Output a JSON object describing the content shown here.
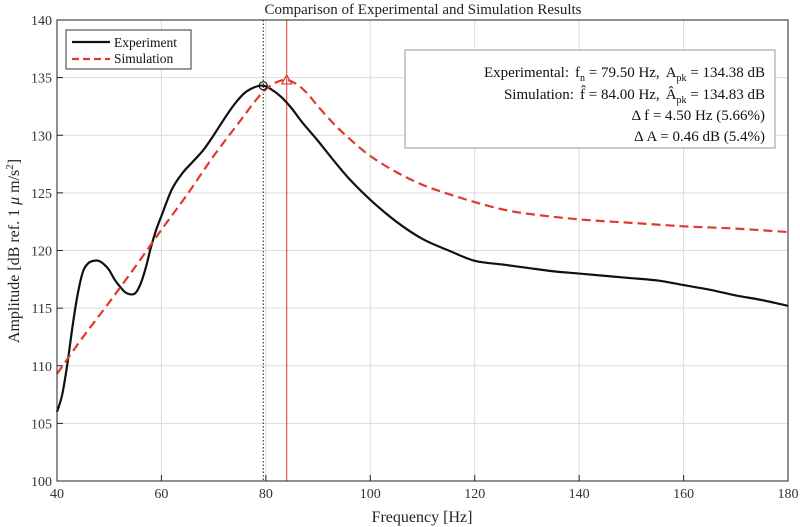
{
  "chart_data": {
    "type": "line",
    "title": "Comparison of Experimental and Simulation Results",
    "xlabel": "Frequency [Hz]",
    "ylabel_parts": {
      "pre": "Amplitude [dB ref. 1 ",
      "mu": "μ",
      "unit": " m/s",
      "sup": "2",
      "post": "]"
    },
    "xlim": [
      40,
      180
    ],
    "ylim": [
      100,
      140
    ],
    "xticks": [
      "40",
      "60",
      "80",
      "100",
      "120",
      "140",
      "160",
      "180"
    ],
    "yticks": [
      "100",
      "105",
      "110",
      "115",
      "120",
      "125",
      "130",
      "135",
      "140"
    ],
    "grid": true,
    "legend_position": "top-left",
    "series": [
      {
        "name": "Experiment",
        "color": "#111111",
        "style": "solid",
        "x": [
          40,
          41,
          42,
          43,
          44,
          45,
          46,
          47,
          48,
          49,
          50,
          51,
          52,
          53,
          54,
          55,
          56,
          57,
          58,
          59,
          60,
          62,
          64,
          66,
          68,
          70,
          72,
          74,
          76,
          78,
          79.5,
          81,
          83,
          85,
          87,
          90,
          93,
          96,
          100,
          105,
          110,
          115,
          120,
          125,
          130,
          135,
          140,
          145,
          150,
          155,
          160,
          165,
          170,
          175,
          180
        ],
        "y": [
          106.0,
          107.5,
          110.2,
          113.5,
          116.3,
          118.2,
          118.9,
          119.1,
          119.1,
          118.8,
          118.3,
          117.5,
          116.9,
          116.4,
          116.2,
          116.3,
          117.1,
          118.5,
          120.3,
          121.8,
          123.0,
          125.3,
          126.7,
          127.7,
          128.7,
          130.0,
          131.4,
          132.7,
          133.7,
          134.2,
          134.3,
          134.0,
          133.3,
          132.3,
          131.1,
          129.5,
          127.8,
          126.2,
          124.4,
          122.5,
          121.0,
          120.0,
          119.1,
          118.8,
          118.5,
          118.2,
          118.0,
          117.8,
          117.6,
          117.4,
          117.0,
          116.6,
          116.1,
          115.7,
          115.2
        ]
      },
      {
        "name": "Simulation",
        "color": "#e03a2e",
        "style": "dashed",
        "x": [
          40,
          45,
          50,
          55,
          60,
          65,
          70,
          75,
          78,
          80,
          82,
          84,
          86,
          88,
          90,
          93,
          96,
          100,
          105,
          110,
          115,
          120,
          125,
          130,
          140,
          150,
          160,
          170,
          180
        ],
        "y": [
          109.3,
          112.5,
          115.5,
          118.6,
          121.8,
          124.9,
          128.2,
          131.2,
          133.0,
          134.0,
          134.6,
          134.8,
          134.4,
          133.6,
          132.5,
          131.0,
          129.7,
          128.2,
          126.8,
          125.7,
          124.9,
          124.2,
          123.6,
          123.2,
          122.7,
          122.4,
          122.1,
          121.9,
          121.6
        ]
      }
    ],
    "markers": [
      {
        "series": "Experiment",
        "shape": "circle",
        "x": 79.5,
        "y": 134.3,
        "color": "#111111"
      },
      {
        "series": "Simulation",
        "shape": "triangle",
        "x": 84.0,
        "y": 134.8,
        "color": "#e03a2e"
      }
    ],
    "vlines": [
      {
        "x": 79.5,
        "color": "#111111",
        "style": "dotted"
      },
      {
        "x": 84.0,
        "color": "#e03a2e",
        "style": "solid"
      }
    ],
    "annotation": {
      "line1": {
        "label": "Experimental:",
        "f": "f",
        "f_sub": "n",
        "f_val": " =  79.50  Hz,",
        "a": "A",
        "a_sub": "pk",
        "a_val": " =  134.38  dB"
      },
      "line2": {
        "label": "Simulation:",
        "f": "f̂",
        "f_val": "   =  84.00  Hz,",
        "a": "Â",
        "a_sub": "pk",
        "a_val": " =  134.83  dB"
      },
      "line3": "Δ  f  =  4.50  Hz  (5.66%)",
      "line4": "Δ  A  =  0.46  dB  (5.4%)"
    }
  }
}
